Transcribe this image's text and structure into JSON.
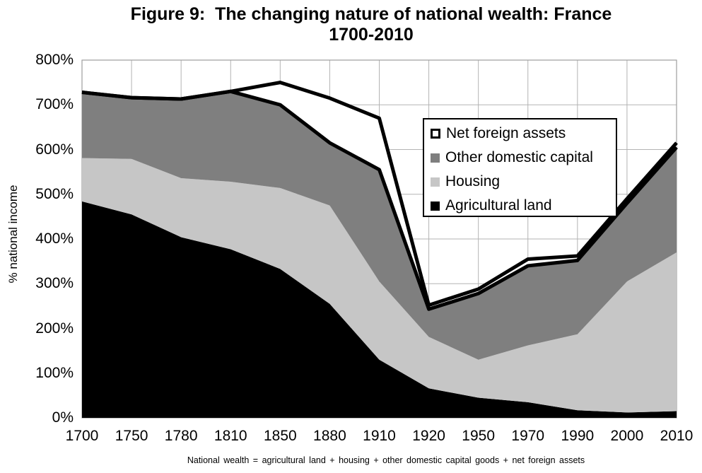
{
  "figure": {
    "title_line1": "Figure 9:  The changing nature of national wealth: France",
    "title_line2": "1700-2010",
    "footnote": "National wealth = agricultural land + housing + other domestic capital goods + net foreign assets"
  },
  "chart_data": {
    "type": "area",
    "stacked": true,
    "title": "Figure 9: The changing nature of national wealth: France 1700-2010",
    "xlabel": "",
    "ylabel": "% national income",
    "ylim": [
      0,
      800
    ],
    "y_tick_step": 100,
    "y_ticks": [
      "0%",
      "100%",
      "200%",
      "300%",
      "400%",
      "500%",
      "600%",
      "700%",
      "800%"
    ],
    "grid": "on",
    "categories": [
      "1700",
      "1750",
      "1780",
      "1810",
      "1850",
      "1880",
      "1910",
      "1920",
      "1950",
      "1970",
      "1990",
      "2000",
      "2010"
    ],
    "series": [
      {
        "name": "Agricultural land",
        "color": "#000000",
        "outline": false,
        "values": [
          484,
          455,
          404,
          377,
          333,
          255,
          130,
          66,
          45,
          35,
          17,
          12,
          15
        ]
      },
      {
        "name": "Housing",
        "color": "#c6c6c6",
        "outline": false,
        "values": [
          97,
          124,
          132,
          151,
          181,
          220,
          175,
          115,
          85,
          127,
          170,
          293,
          355
        ]
      },
      {
        "name": "Other domestic capital",
        "color": "#7f7f7f",
        "outline": true,
        "values": [
          147,
          137,
          177,
          202,
          186,
          140,
          250,
          62,
          148,
          178,
          165,
          175,
          235
        ]
      },
      {
        "name": "Net foreign assets",
        "color": "#ffffff",
        "outline": true,
        "values": [
          0,
          0,
          0,
          0,
          50,
          100,
          115,
          9,
          10,
          15,
          10,
          10,
          10
        ]
      }
    ],
    "legend": {
      "position": "upper-right-inside",
      "entries": [
        {
          "label": "Net foreign assets",
          "marker": "outlined",
          "color": "#ffffff"
        },
        {
          "label": "Other domestic capital",
          "marker": "filled",
          "color": "#7f7f7f"
        },
        {
          "label": "Housing",
          "marker": "filled",
          "color": "#c6c6c6"
        },
        {
          "label": "Agricultural land",
          "marker": "filled",
          "color": "#000000"
        }
      ]
    },
    "style": {
      "gridline_color": "#b3b3b3",
      "plot_border_color": "#9e9e9e",
      "boundary_line_color": "#000000",
      "boundary_line_width": 5
    }
  }
}
